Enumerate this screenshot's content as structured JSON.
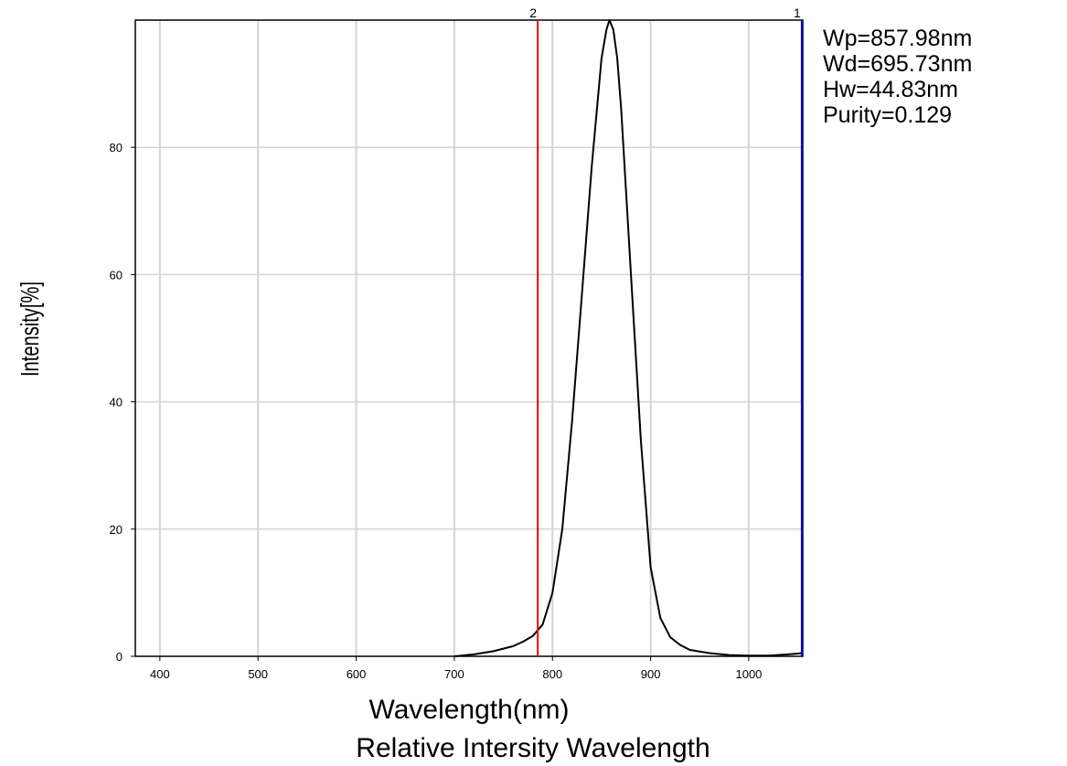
{
  "chart_data": {
    "type": "line",
    "title": "Relative Intersity Wavelength",
    "xlabel": "Wavelength(nm)",
    "ylabel": "Intensity[%]",
    "xlim": [
      375,
      1055
    ],
    "ylim": [
      0,
      100
    ],
    "x_ticks": [
      400,
      500,
      600,
      700,
      800,
      900,
      1000
    ],
    "y_ticks": [
      0,
      20,
      40,
      60,
      80
    ],
    "grid": true,
    "series": [
      {
        "color": "#000000",
        "x": [
          700,
          720,
          740,
          760,
          770,
          780,
          790,
          800,
          810,
          820,
          830,
          840,
          850,
          855,
          858,
          862,
          866,
          870,
          880,
          890,
          900,
          910,
          920,
          930,
          940,
          960,
          980,
          1000,
          1020,
          1040,
          1055
        ],
        "y": [
          0,
          0.3,
          0.8,
          1.6,
          2.3,
          3.2,
          5,
          10,
          20,
          37,
          57,
          77,
          94,
          98.5,
          100,
          98.5,
          94,
          86,
          60,
          34,
          14,
          6,
          3,
          1.8,
          1,
          0.5,
          0.2,
          0.1,
          0.1,
          0.3,
          0.5
        ]
      }
    ],
    "markers": [
      {
        "label": "2",
        "x": 785,
        "color": "#ff0000"
      },
      {
        "label": "1",
        "x": 1054,
        "color": "#0000ff"
      }
    ]
  },
  "stats": {
    "wp": "Wp=857.98nm",
    "wd": "Wd=695.73nm",
    "hw": "Hw=44.83nm",
    "purity": "Purity=0.129"
  }
}
